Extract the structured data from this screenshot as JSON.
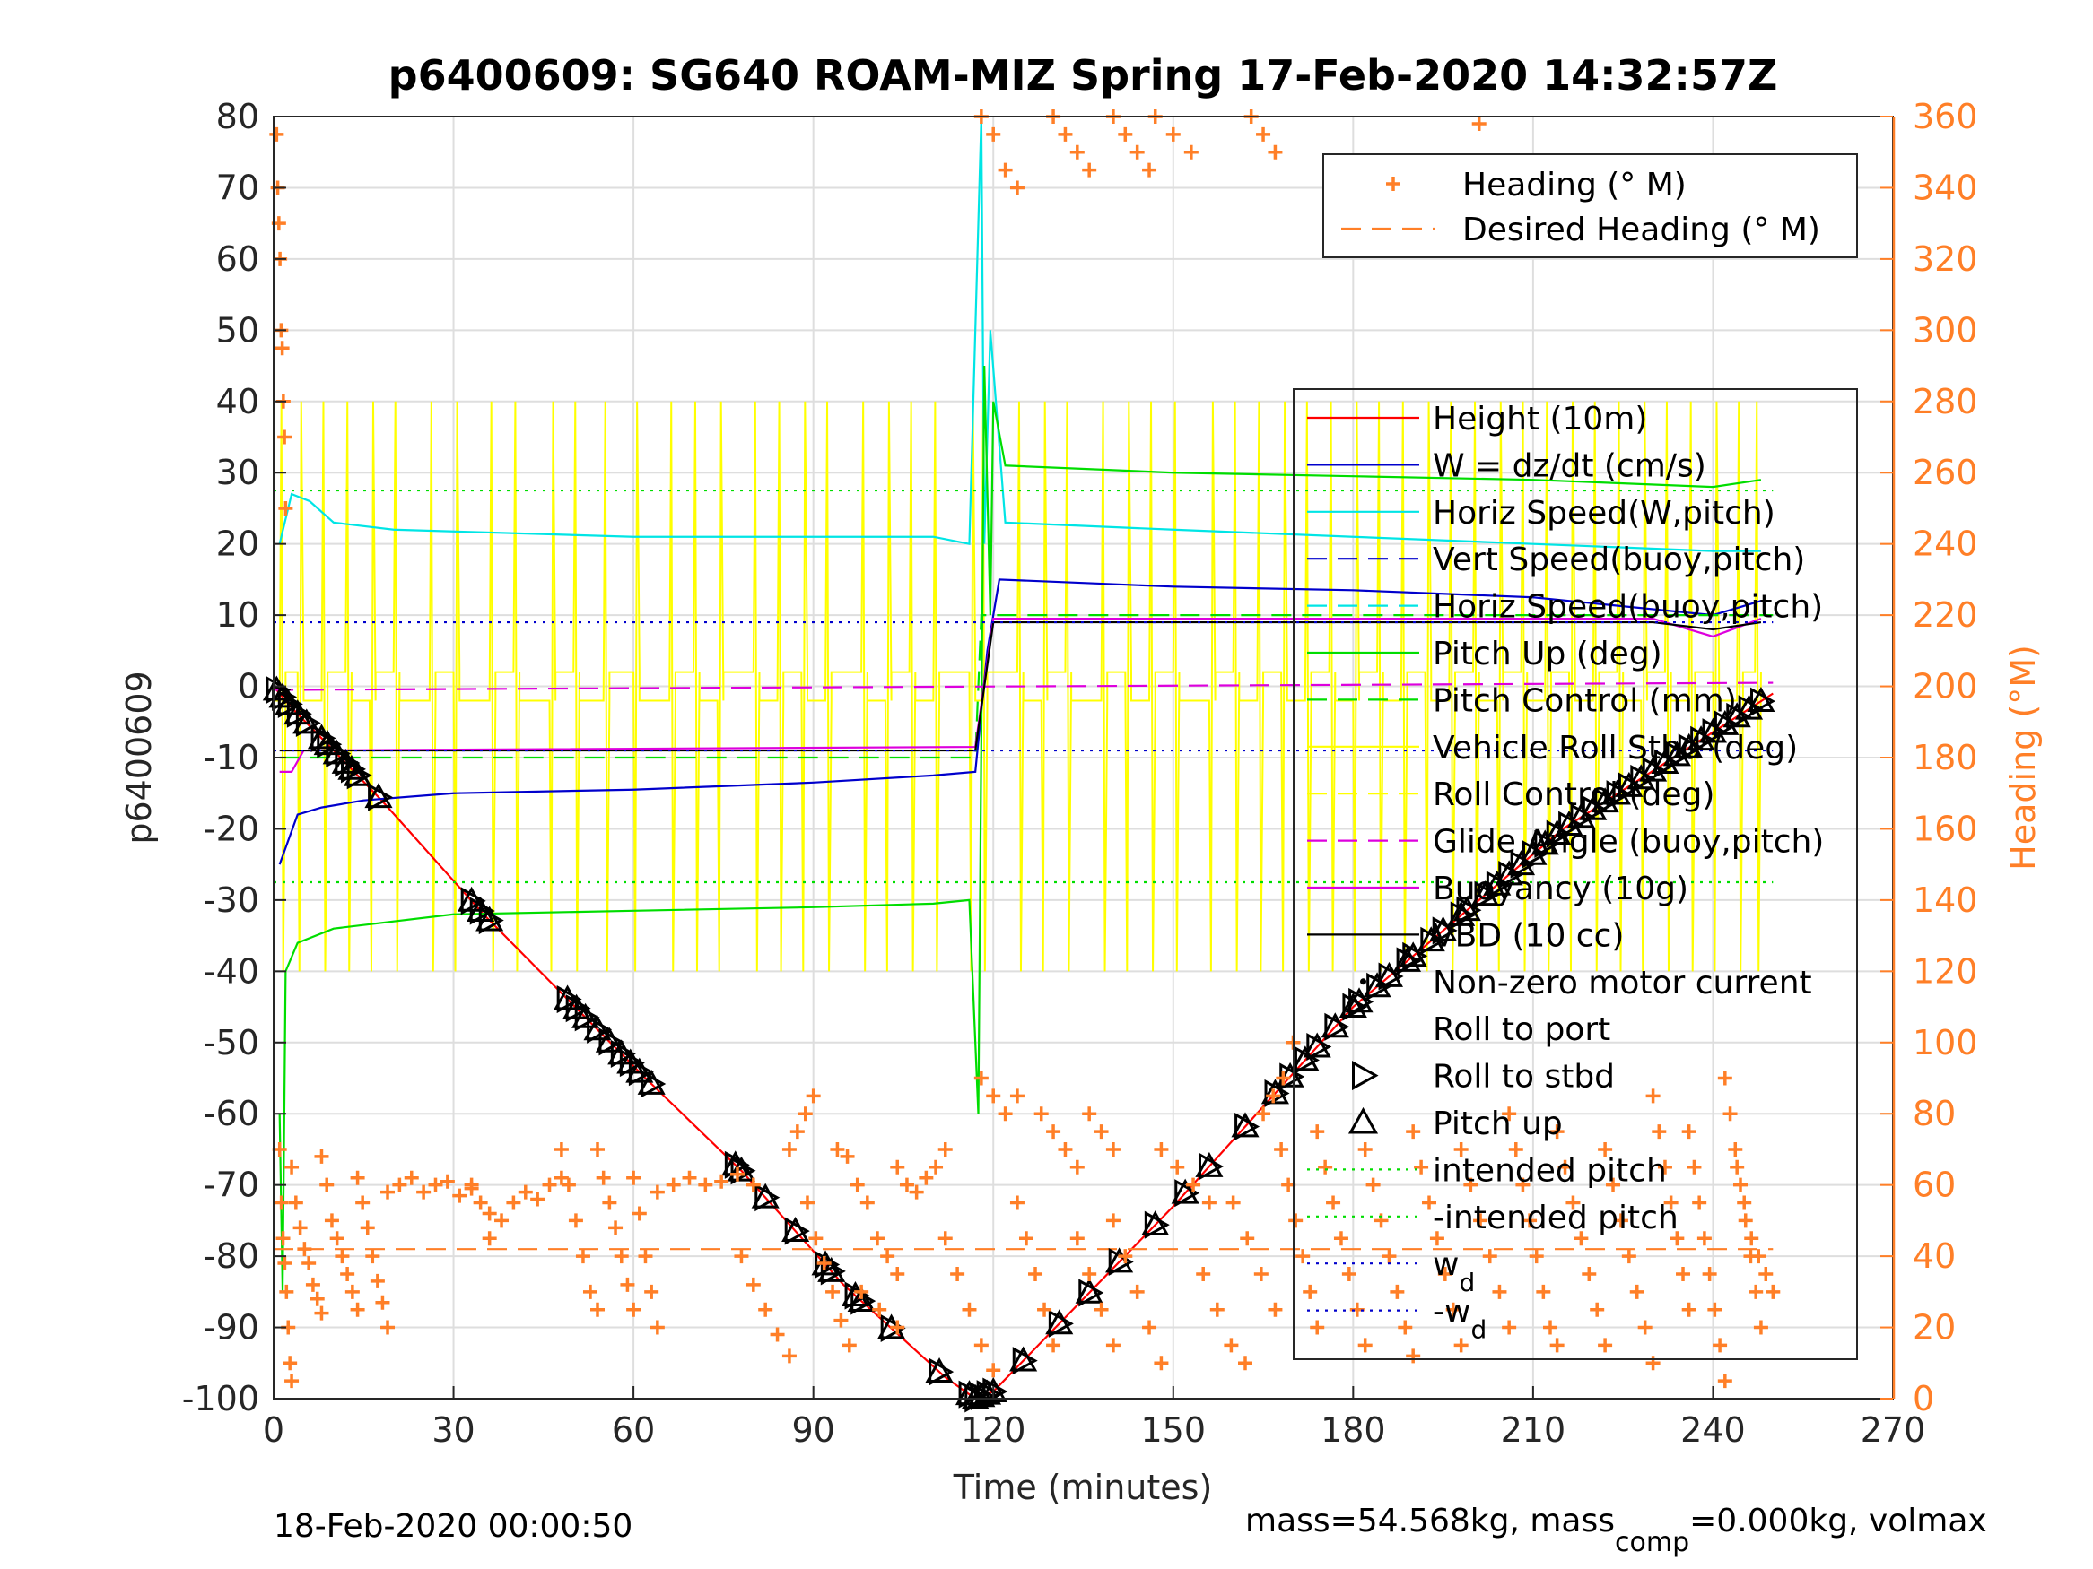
{
  "chart_data": {
    "type": "line",
    "title": "p6400609: SG640 ROAM-MIZ Spring 17-Feb-2020 14:32:57Z",
    "xlabel": "Time (minutes)",
    "ylabel_left": "p6400609",
    "ylabel_right": "Heading (°M)",
    "xlim": [
      0,
      270
    ],
    "ylim_left": [
      -100,
      80
    ],
    "ylim_right": [
      0,
      360
    ],
    "xticks": [
      0,
      30,
      60,
      90,
      120,
      150,
      180,
      210,
      240,
      270
    ],
    "yticks_left": [
      -100,
      -90,
      -80,
      -70,
      -60,
      -50,
      -40,
      -30,
      -20,
      -10,
      0,
      10,
      20,
      30,
      40,
      50,
      60,
      70,
      80
    ],
    "yticks_right": [
      0,
      20,
      40,
      60,
      80,
      100,
      120,
      140,
      160,
      180,
      200,
      220,
      240,
      260,
      280,
      300,
      320,
      340,
      360
    ],
    "grid": true,
    "footer_left": "18-Feb-2020 00:00:50",
    "footer_right": {
      "t1": "mass=54.568kg, mass",
      "t1_sub": "comp",
      "t2": "=0.000kg, volmax"
    },
    "legend_heading": {
      "placement": "top-right",
      "entries": [
        "Heading (° M)",
        "Desired Heading (° M)"
      ]
    },
    "legend_main": {
      "placement": "right",
      "entries": [
        {
          "label": "Height (10m)",
          "color": "#ff0000",
          "style": "solid"
        },
        {
          "label": "W = dz/dt (cm/s)",
          "color": "#0000cc",
          "style": "solid"
        },
        {
          "label": "Horiz Speed(W,pitch)",
          "color": "#00e5e5",
          "style": "solid"
        },
        {
          "label": "Vert Speed(buoy,pitch)",
          "color": "#0000cc",
          "style": "dashed"
        },
        {
          "label": "Horiz Speed(buoy,pitch)",
          "color": "#00e5e5",
          "style": "dashed"
        },
        {
          "label": "Pitch Up (deg)",
          "color": "#00dd00",
          "style": "solid"
        },
        {
          "label": "Pitch Control (mm)",
          "color": "#00dd00",
          "style": "dashed"
        },
        {
          "label": "Vehicle Roll Stbd (deg)",
          "color": "#ffff00",
          "style": "solid"
        },
        {
          "label": "Roll Control (deg)",
          "color": "#ffff00",
          "style": "dashed"
        },
        {
          "label": "Glide Angle (buoy,pitch)",
          "color": "#dd00dd",
          "style": "dashed"
        },
        {
          "label": "Buoyancy (10g)",
          "color": "#dd00dd",
          "style": "solid"
        },
        {
          "label": "VBD (10 cc)",
          "color": "#000000",
          "style": "solid"
        },
        {
          "label": "Non-zero motor current",
          "color": "#000000",
          "style": "dot"
        },
        {
          "label": "Roll to port",
          "color": "#000000",
          "style": "tri-left"
        },
        {
          "label": "Roll to stbd",
          "color": "#000000",
          "style": "tri-right"
        },
        {
          "label": "Pitch up",
          "color": "#000000",
          "style": "tri-up"
        },
        {
          "label": "intended pitch",
          "color": "#00dd00",
          "style": "dotted"
        },
        {
          "label": "-intended pitch",
          "color": "#00dd00",
          "style": "dotted"
        },
        {
          "label": "w",
          "sub": "d",
          "color": "#0000cc",
          "style": "dotted"
        },
        {
          "label": "-w",
          "sub": "d",
          "color": "#0000cc",
          "style": "dotted"
        }
      ]
    },
    "series": [
      {
        "name": "Height (10m)",
        "color": "#ff0000",
        "x": [
          0,
          3,
          10,
          18,
          35,
          62,
          78,
          95,
          112,
          117,
          120,
          150,
          180,
          215,
          250
        ],
        "y": [
          0,
          -3,
          -9,
          -16,
          -32,
          -55,
          -68,
          -84,
          -97,
          -100,
          -99,
          -73,
          -45,
          -20,
          -1
        ]
      },
      {
        "name": "W = dz/dt (cm/s)",
        "color": "#0000cc",
        "x": [
          1,
          4,
          8,
          15,
          30,
          60,
          90,
          110,
          117,
          119,
          121,
          150,
          180,
          210,
          240,
          248
        ],
        "y": [
          -25,
          -18,
          -17,
          -16,
          -15,
          -14.5,
          -13.5,
          -12.5,
          -12,
          5,
          15,
          14,
          13.5,
          12.5,
          10,
          12
        ]
      },
      {
        "name": "Horiz Speed(W,pitch)",
        "color": "#00e5e5",
        "x": [
          1,
          3,
          6,
          10,
          20,
          60,
          90,
          110,
          116,
          118,
          118.5,
          119.5,
          122,
          150,
          180,
          210,
          240,
          248
        ],
        "y": [
          20,
          27,
          26,
          23,
          22,
          21,
          21,
          21,
          20,
          80,
          20,
          50,
          23,
          22,
          21,
          20,
          19,
          19
        ]
      },
      {
        "name": "Pitch Up (deg)",
        "color": "#00dd00",
        "x": [
          1,
          1.5,
          2,
          4,
          10,
          30,
          60,
          90,
          110,
          116,
          117.5,
          118.5,
          119.5,
          120,
          122,
          150,
          180,
          210,
          240,
          248
        ],
        "y": [
          -60,
          -85,
          -40,
          -36,
          -34,
          -32,
          -31.5,
          -31,
          -30.5,
          -30,
          -60,
          45,
          10,
          40,
          31,
          30,
          29.5,
          29,
          28,
          29
        ]
      },
      {
        "name": "Pitch Control (mm)",
        "color": "#00dd00",
        "style": "dashed",
        "x": [
          1,
          117,
          118,
          250
        ],
        "y": [
          -10,
          -10,
          10,
          10
        ]
      },
      {
        "name": "Glide Angle (buoy,pitch)",
        "color": "#dd00dd",
        "style": "dashed",
        "x": [
          0,
          250
        ],
        "y": [
          -0.5,
          0.5
        ]
      },
      {
        "name": "Buoyancy (10g)",
        "color": "#dd00dd",
        "x": [
          1,
          3,
          5,
          117,
          120,
          230,
          240,
          248
        ],
        "y": [
          -12,
          -12,
          -9,
          -8.5,
          9.5,
          9.5,
          7,
          9.5
        ]
      },
      {
        "name": "VBD (10 cc)",
        "color": "#000000",
        "x": [
          1,
          5,
          117,
          120,
          230,
          240,
          248
        ],
        "y": [
          -9,
          -9,
          -9,
          9,
          9,
          8,
          9
        ]
      },
      {
        "name": "intended pitch",
        "color": "#00dd00",
        "style": "dotted",
        "x": [
          0,
          250
        ],
        "y": [
          27.5,
          27.5
        ]
      },
      {
        "name": "-intended pitch",
        "color": "#00dd00",
        "style": "dotted",
        "x": [
          0,
          250
        ],
        "y": [
          -27.5,
          -27.5
        ]
      },
      {
        "name": "w",
        "color": "#0000cc",
        "style": "dotted",
        "x": [
          0,
          250
        ],
        "y": [
          9,
          9
        ]
      },
      {
        "name": "-w",
        "color": "#0000cc",
        "style": "dotted",
        "x": [
          0,
          250
        ],
        "y": [
          -9,
          -9
        ]
      },
      {
        "name": "Desired Heading (° M)",
        "color": "#ff7f27",
        "style": "dashed",
        "axis": "right",
        "x": [
          0,
          250
        ],
        "y": [
          42,
          42
        ]
      }
    ],
    "roll_spikes": {
      "name": "Vehicle Roll Stbd (deg)",
      "color": "#ffff00",
      "baseline": [
        -2,
        2
      ],
      "events_x": [
        1,
        4,
        8,
        12,
        16,
        20,
        26,
        30,
        36,
        40,
        46,
        50,
        55,
        60,
        66,
        70,
        74,
        80,
        84,
        88,
        92,
        98,
        102,
        106,
        110,
        116,
        118,
        124,
        128,
        132,
        138,
        142,
        146,
        150,
        156,
        160,
        164,
        168,
        172,
        176,
        180,
        184,
        188,
        192,
        196,
        200,
        204,
        208,
        212,
        216,
        220,
        224,
        228,
        232,
        236,
        240,
        244,
        247
      ],
      "up": 40,
      "down": -40
    },
    "markers": {
      "name": "Pitch up / Roll markers",
      "x": [
        0.5,
        1.5,
        2.5,
        4,
        5.5,
        8,
        9,
        10.5,
        12,
        13,
        14,
        17.5,
        33,
        34.5,
        36,
        49,
        50.5,
        52,
        54,
        56,
        58,
        59.5,
        61,
        63,
        77,
        78,
        82,
        87,
        92,
        93,
        97,
        98,
        103,
        111,
        116,
        117,
        118,
        119,
        120,
        125,
        131,
        136,
        141,
        147,
        152,
        156,
        162,
        167,
        169.5,
        172,
        174,
        177,
        180,
        181,
        184,
        186,
        189,
        190,
        193,
        195,
        198,
        199,
        202,
        204,
        206,
        208,
        210,
        212,
        214,
        216,
        218,
        220,
        222,
        224,
        226,
        228,
        230,
        232,
        234,
        236,
        238,
        240,
        242,
        244,
        246,
        248
      ]
    },
    "heading": {
      "name": "Heading (° M)",
      "color": "#ff7f27",
      "clusters": [
        {
          "x0": 0.5,
          "x1": 2,
          "y": [
            355,
            340,
            330,
            320,
            300,
            295,
            280,
            270,
            250
          ]
        },
        {
          "x0": 1,
          "x1": 3,
          "y": [
            70,
            55,
            45,
            38,
            30,
            20,
            10,
            5
          ]
        },
        {
          "x0": 3,
          "x1": 8,
          "y": [
            65,
            55,
            48,
            42,
            38,
            32,
            28,
            24
          ]
        },
        {
          "x0": 8,
          "x1": 14,
          "y": [
            68,
            60,
            50,
            45,
            40,
            35,
            30,
            25
          ]
        },
        {
          "x0": 14,
          "x1": 19,
          "y": [
            62,
            55,
            48,
            40,
            33,
            27,
            20
          ]
        },
        {
          "x0": 19,
          "x1": 33,
          "y": [
            58,
            60,
            62,
            58,
            60,
            61,
            57,
            59
          ]
        },
        {
          "x0": 33,
          "x1": 36,
          "y": [
            60,
            55,
            52
          ]
        },
        {
          "x0": 36,
          "x1": 48,
          "y": [
            45,
            50,
            55,
            58,
            56,
            60,
            62
          ]
        },
        {
          "x0": 48,
          "x1": 54,
          "y": [
            70,
            60,
            50,
            40,
            30,
            25
          ]
        },
        {
          "x0": 54,
          "x1": 60,
          "y": [
            70,
            62,
            55,
            48,
            40,
            32,
            25
          ]
        },
        {
          "x0": 60,
          "x1": 64,
          "y": [
            62,
            52,
            40,
            30,
            20
          ]
        },
        {
          "x0": 64,
          "x1": 80,
          "y": [
            58,
            60,
            62,
            60,
            61,
            63,
            60
          ]
        },
        {
          "x0": 78,
          "x1": 86,
          "y": [
            40,
            32,
            25,
            18,
            12
          ]
        },
        {
          "x0": 86,
          "x1": 90,
          "y": [
            70,
            75,
            80,
            85
          ]
        },
        {
          "x0": 89,
          "x1": 96,
          "y": [
            55,
            45,
            38,
            30,
            22,
            15
          ]
        },
        {
          "x0": 94,
          "x1": 104,
          "y": [
            70,
            68,
            60,
            55,
            45,
            40,
            35
          ]
        },
        {
          "x0": 98,
          "x1": 104,
          "y": [
            30,
            25,
            20
          ]
        },
        {
          "x0": 104,
          "x1": 112,
          "y": [
            65,
            60,
            58,
            62,
            65,
            70
          ]
        },
        {
          "x0": 112,
          "x1": 120,
          "y": [
            45,
            35,
            25,
            15,
            8
          ]
        },
        {
          "x0": 118,
          "x1": 124,
          "y": [
            90,
            85,
            80,
            85
          ]
        },
        {
          "x0": 118,
          "x1": 124,
          "y": [
            360,
            355,
            345,
            340
          ]
        },
        {
          "x0": 124,
          "x1": 130,
          "y": [
            55,
            45,
            35,
            25,
            15
          ]
        },
        {
          "x0": 128,
          "x1": 134,
          "y": [
            80,
            75,
            70,
            65
          ]
        },
        {
          "x0": 130,
          "x1": 136,
          "y": [
            360,
            355,
            350,
            345
          ]
        },
        {
          "x0": 134,
          "x1": 140,
          "y": [
            45,
            35,
            25,
            15
          ]
        },
        {
          "x0": 136,
          "x1": 140,
          "y": [
            80,
            75,
            70
          ]
        },
        {
          "x0": 140,
          "x1": 146,
          "y": [
            360,
            355,
            350,
            345
          ]
        },
        {
          "x0": 140,
          "x1": 148,
          "y": [
            50,
            40,
            30,
            20,
            10
          ]
        },
        {
          "x0": 147,
          "x1": 153,
          "y": [
            360,
            355,
            350
          ]
        },
        {
          "x0": 148,
          "x1": 156,
          "y": [
            70,
            65,
            60,
            55
          ]
        },
        {
          "x0": 155,
          "x1": 162,
          "y": [
            35,
            25,
            15,
            10
          ]
        },
        {
          "x0": 163,
          "x1": 167,
          "y": [
            360,
            355,
            350
          ]
        },
        {
          "x0": 160,
          "x1": 167,
          "y": [
            55,
            45,
            35,
            25
          ]
        },
        {
          "x0": 165,
          "x1": 170,
          "y": [
            80,
            85,
            90,
            100
          ]
        },
        {
          "x0": 168,
          "x1": 174,
          "y": [
            70,
            60,
            50,
            40,
            30,
            20
          ]
        },
        {
          "x0": 174,
          "x1": 182,
          "y": [
            75,
            65,
            55,
            45,
            35,
            25,
            15
          ]
        },
        {
          "x0": 182,
          "x1": 190,
          "y": [
            70,
            60,
            50,
            40,
            30,
            20,
            12
          ]
        },
        {
          "x0": 190,
          "x1": 198,
          "y": [
            75,
            65,
            55,
            45,
            35,
            25,
            15
          ]
        },
        {
          "x0": 200,
          "x1": 202,
          "y": [
            358
          ]
        },
        {
          "x0": 198,
          "x1": 206,
          "y": [
            70,
            60,
            50,
            40,
            30,
            20
          ]
        },
        {
          "x0": 206,
          "x1": 214,
          "y": [
            80,
            70,
            60,
            50,
            40,
            30,
            20,
            15
          ]
        },
        {
          "x0": 214,
          "x1": 222,
          "y": [
            75,
            65,
            55,
            45,
            35,
            25,
            15
          ]
        },
        {
          "x0": 222,
          "x1": 230,
          "y": [
            70,
            60,
            50,
            40,
            30,
            20,
            10
          ]
        },
        {
          "x0": 230,
          "x1": 236,
          "y": [
            85,
            75,
            65,
            55,
            45,
            35,
            25
          ]
        },
        {
          "x0": 236,
          "x1": 242,
          "y": [
            75,
            65,
            55,
            45,
            35,
            25,
            15,
            5
          ]
        },
        {
          "x0": 242,
          "x1": 248,
          "y": [
            90,
            80,
            70,
            60,
            50,
            40,
            30,
            20
          ]
        },
        {
          "x0": 244,
          "x1": 250,
          "y": [
            65,
            55,
            45,
            40,
            35,
            30
          ]
        }
      ]
    }
  }
}
